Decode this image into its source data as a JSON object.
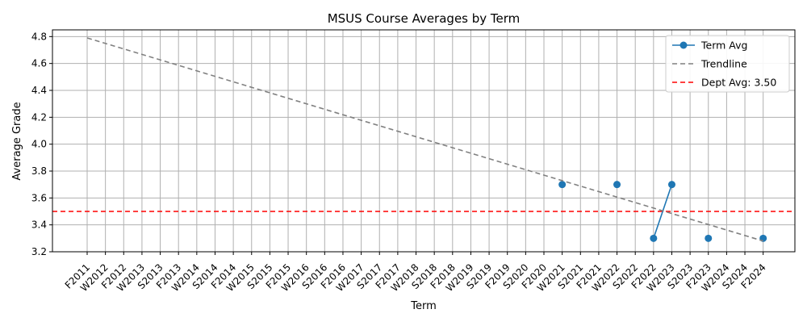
{
  "chart_data": {
    "type": "line",
    "title": "MSUS Course Averages by Term",
    "xlabel": "Term",
    "ylabel": "Average Grade",
    "categories": [
      "F2011",
      "W2012",
      "F2012",
      "W2013",
      "S2013",
      "F2013",
      "W2014",
      "S2014",
      "F2014",
      "W2015",
      "S2015",
      "F2015",
      "W2016",
      "S2016",
      "F2016",
      "W2017",
      "S2017",
      "F2017",
      "W2018",
      "S2018",
      "F2018",
      "W2019",
      "S2019",
      "F2019",
      "S2020",
      "F2020",
      "W2021",
      "S2021",
      "F2021",
      "W2022",
      "S2022",
      "F2022",
      "W2023",
      "S2023",
      "F2023",
      "W2024",
      "S2024",
      "F2024"
    ],
    "ylim": [
      3.2,
      4.85
    ],
    "yticks": [
      "3.2",
      "3.4",
      "3.6",
      "3.8",
      "4.0",
      "4.2",
      "4.4",
      "4.6",
      "4.8"
    ],
    "grid": true,
    "legend_position": "top-right",
    "series": [
      {
        "name": "Term Avg",
        "color": "#1f77b4",
        "style": "solid-with-markers",
        "points": [
          {
            "x": "W2021",
            "y": 3.7
          },
          {
            "x": "W2022",
            "y": 3.7
          },
          {
            "x": "F2022",
            "y": 3.3
          },
          {
            "x": "W2023",
            "y": 3.7
          },
          {
            "x": "F2023",
            "y": 3.3
          },
          {
            "x": "F2024",
            "y": 3.3
          }
        ],
        "connected_segments": [
          [
            "F2022",
            "W2023"
          ]
        ]
      },
      {
        "name": "Trendline",
        "color": "#808080",
        "style": "dashed",
        "points": [
          {
            "x": "F2011",
            "y": 4.79
          },
          {
            "x": "F2024",
            "y": 3.28
          }
        ]
      },
      {
        "name": "Dept Avg: 3.50",
        "color": "#ff0000",
        "style": "dashed-horizontal",
        "value": 3.5
      }
    ]
  }
}
